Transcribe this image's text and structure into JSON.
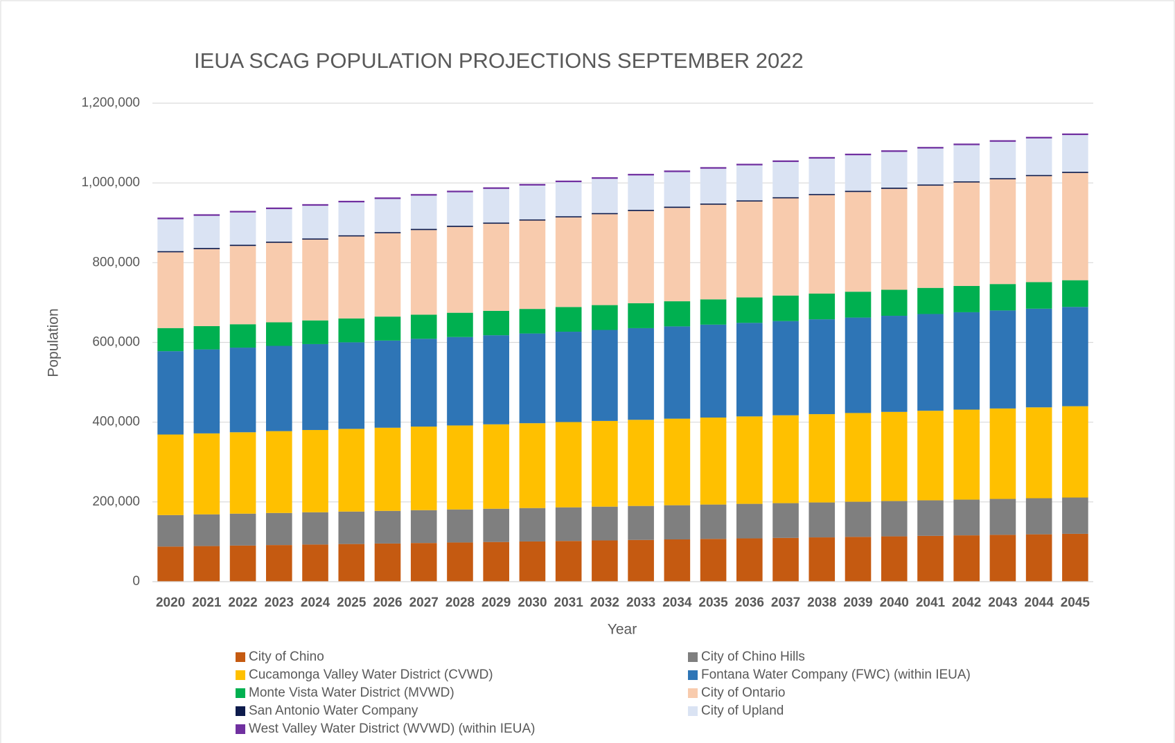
{
  "chart_data": {
    "type": "stacked_bar",
    "title": "IEUA SCAG POPULATION PROJECTIONS SEPTEMBER 2022",
    "x_label": "Year",
    "y_label": "Population",
    "categories": [
      "2020",
      "2021",
      "2022",
      "2023",
      "2024",
      "2025",
      "2026",
      "2027",
      "2028",
      "2029",
      "2030",
      "2031",
      "2032",
      "2033",
      "2034",
      "2035",
      "2036",
      "2037",
      "2038",
      "2039",
      "2040",
      "2041",
      "2042",
      "2043",
      "2044",
      "2045"
    ],
    "ylim": [
      0,
      1200000
    ],
    "yticks": [
      0,
      {
        "value": 200000,
        "label": "200,000"
      },
      {
        "value": 400000,
        "label": "400,000"
      },
      {
        "value": 600000,
        "label": "600,000"
      },
      {
        "value": 800000,
        "label": "800,000"
      },
      {
        "value": 1000000,
        "label": "1,000,000"
      },
      {
        "value": 1200000,
        "label": "1,200,000"
      }
    ],
    "grid": true,
    "legend": "bottom",
    "series": [
      {
        "name": "City of Chino",
        "color": "#c55a11",
        "values": [
          88000,
          89280,
          90560,
          91840,
          93120,
          94400,
          95680,
          96960,
          98240,
          99520,
          100800,
          102080,
          103360,
          104640,
          105920,
          107200,
          108480,
          109760,
          111040,
          112320,
          113600,
          114880,
          116160,
          117440,
          118720,
          120000
        ]
      },
      {
        "name": "City of Chino Hills",
        "color": "#7f7f7f",
        "values": [
          79000,
          79480,
          79960,
          80440,
          80920,
          81400,
          81880,
          82360,
          82840,
          83320,
          83800,
          84280,
          84760,
          85240,
          85720,
          86200,
          86680,
          87160,
          87640,
          88120,
          88600,
          89080,
          89560,
          90040,
          90520,
          91000
        ]
      },
      {
        "name": "Cucamonga Valley Water District (CVWD)",
        "color": "#ffc000",
        "values": [
          202000,
          203080,
          204160,
          205240,
          206320,
          207400,
          208480,
          209560,
          210640,
          211720,
          212800,
          213880,
          214960,
          216040,
          217120,
          218200,
          219280,
          220360,
          221440,
          222520,
          223600,
          224680,
          225760,
          226840,
          227920,
          229000
        ]
      },
      {
        "name": "Fontana Water Company (FWC) (within IEUA)",
        "color": "#2e75b6",
        "values": [
          209000,
          210600,
          212200,
          213800,
          215400,
          217000,
          218600,
          220200,
          221800,
          223400,
          225000,
          226600,
          228200,
          229800,
          231400,
          233000,
          234600,
          236200,
          237800,
          239400,
          241000,
          242600,
          244200,
          245800,
          247400,
          249000
        ]
      },
      {
        "name": "Monte Vista Water District (MVWD)",
        "color": "#00b050",
        "values": [
          58000,
          58360,
          58720,
          59080,
          59440,
          59800,
          60160,
          60520,
          60880,
          61240,
          61600,
          61960,
          62320,
          62680,
          63040,
          63400,
          63760,
          64120,
          64480,
          64840,
          65200,
          65560,
          65920,
          66280,
          66640,
          67000
        ]
      },
      {
        "name": "City of Ontario",
        "color": "#f8cbad",
        "values": [
          190000,
          193160,
          196320,
          199480,
          202640,
          205800,
          208960,
          212120,
          215280,
          218440,
          221600,
          224760,
          227920,
          231080,
          234240,
          237400,
          240560,
          243720,
          246880,
          250040,
          253200,
          256360,
          259520,
          262680,
          265840,
          269000
        ]
      },
      {
        "name": "San Antonio Water Company",
        "color": "#0d1b4c",
        "values": [
          3000,
          3000,
          3000,
          3000,
          3000,
          3000,
          3000,
          3000,
          3000,
          3000,
          3000,
          3000,
          3000,
          3000,
          3000,
          3000,
          3000,
          3000,
          3000,
          3000,
          3000,
          3000,
          3000,
          3000,
          3000,
          3000
        ]
      },
      {
        "name": "City of Upland",
        "color": "#dae3f3",
        "values": [
          80000,
          80480,
          80960,
          81440,
          81920,
          82400,
          82880,
          83360,
          83840,
          84320,
          84800,
          85280,
          85760,
          86240,
          86720,
          87200,
          87680,
          88160,
          88640,
          89120,
          89600,
          90080,
          90560,
          91040,
          91520,
          92000
        ]
      },
      {
        "name": "West Valley Water District (WVWD) (within IEUA)",
        "color": "#7030a0",
        "values": [
          4000,
          4000,
          4000,
          4000,
          4000,
          4000,
          4000,
          4000,
          4000,
          4000,
          4000,
          4000,
          4000,
          4000,
          4000,
          4000,
          4000,
          4000,
          4000,
          4000,
          4000,
          4000,
          4000,
          4000,
          4000,
          4000
        ]
      }
    ]
  }
}
